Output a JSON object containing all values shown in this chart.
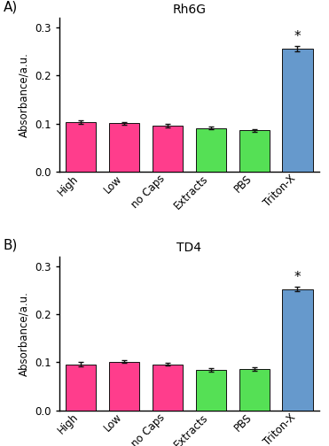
{
  "panels": [
    {
      "label": "A)",
      "title": "Rh6G",
      "categories": [
        "High",
        "Low",
        "no Caps",
        "Extracts",
        "PBS",
        "Triton-X"
      ],
      "values": [
        0.103,
        0.101,
        0.096,
        0.091,
        0.086,
        0.256
      ],
      "errors": [
        0.003,
        0.003,
        0.003,
        0.003,
        0.003,
        0.005
      ],
      "colors": [
        "#FF3D8C",
        "#FF3D8C",
        "#FF3D8C",
        "#55E055",
        "#55E055",
        "#6699CC"
      ],
      "star_bar": 5,
      "ylim": [
        0,
        0.32
      ],
      "yticks": [
        0.0,
        0.1,
        0.2,
        0.3
      ],
      "ylabel": "Absorbance/a.u."
    },
    {
      "label": "B)",
      "title": "TD4",
      "categories": [
        "High",
        "Low",
        "no Caps",
        "Extracts",
        "PBS",
        "Triton-X"
      ],
      "values": [
        0.096,
        0.101,
        0.096,
        0.084,
        0.086,
        0.252
      ],
      "errors": [
        0.004,
        0.003,
        0.003,
        0.003,
        0.003,
        0.005
      ],
      "colors": [
        "#FF3D8C",
        "#FF3D8C",
        "#FF3D8C",
        "#55E055",
        "#55E055",
        "#6699CC"
      ],
      "star_bar": 5,
      "ylim": [
        0,
        0.32
      ],
      "yticks": [
        0.0,
        0.1,
        0.2,
        0.3
      ],
      "ylabel": "Absorbance/a.u."
    }
  ],
  "fig_width": 3.71,
  "fig_height": 5.04,
  "dpi": 100,
  "background_color": "#ffffff",
  "bar_edge_color": "#111111",
  "bar_width": 0.7,
  "error_capsize": 2,
  "error_color": "#111111",
  "error_linewidth": 1.0,
  "tick_label_rotation": 45,
  "tick_label_fontsize": 8.5,
  "ylabel_fontsize": 8.5,
  "title_fontsize": 10,
  "panel_label_fontsize": 11,
  "star_fontsize": 11
}
